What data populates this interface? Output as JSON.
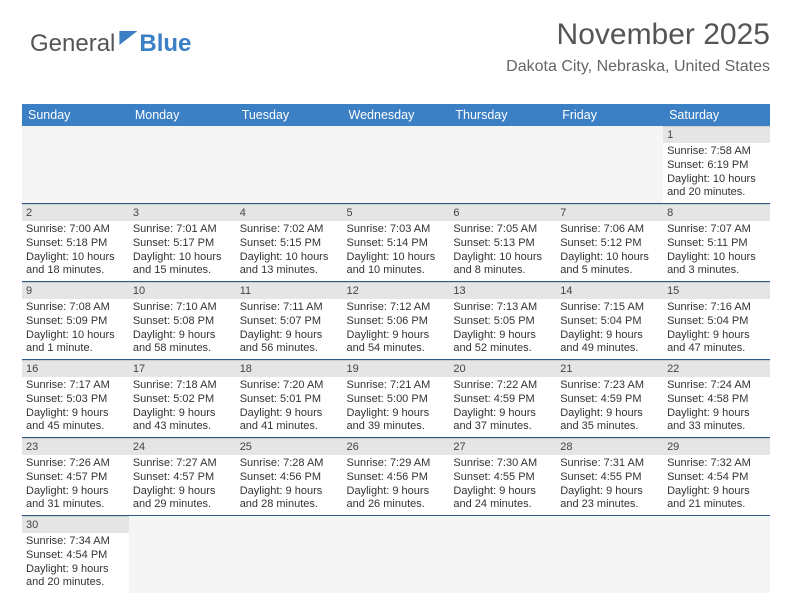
{
  "logo": {
    "part1": "General",
    "part2": "Blue"
  },
  "title": "November 2025",
  "location": "Dakota City, Nebraska, United States",
  "colors": {
    "header_bg": "#3b7fc4",
    "header_text": "#ffffff",
    "daynum_bg": "#e5e5e5",
    "border": "#2d5b8c",
    "text": "#333333"
  },
  "weekdays": [
    "Sunday",
    "Monday",
    "Tuesday",
    "Wednesday",
    "Thursday",
    "Friday",
    "Saturday"
  ],
  "weeks": [
    [
      null,
      null,
      null,
      null,
      null,
      null,
      {
        "n": "1",
        "sunrise": "Sunrise: 7:58 AM",
        "sunset": "Sunset: 6:19 PM",
        "daylight": "Daylight: 10 hours and 20 minutes."
      }
    ],
    [
      {
        "n": "2",
        "sunrise": "Sunrise: 7:00 AM",
        "sunset": "Sunset: 5:18 PM",
        "daylight": "Daylight: 10 hours and 18 minutes."
      },
      {
        "n": "3",
        "sunrise": "Sunrise: 7:01 AM",
        "sunset": "Sunset: 5:17 PM",
        "daylight": "Daylight: 10 hours and 15 minutes."
      },
      {
        "n": "4",
        "sunrise": "Sunrise: 7:02 AM",
        "sunset": "Sunset: 5:15 PM",
        "daylight": "Daylight: 10 hours and 13 minutes."
      },
      {
        "n": "5",
        "sunrise": "Sunrise: 7:03 AM",
        "sunset": "Sunset: 5:14 PM",
        "daylight": "Daylight: 10 hours and 10 minutes."
      },
      {
        "n": "6",
        "sunrise": "Sunrise: 7:05 AM",
        "sunset": "Sunset: 5:13 PM",
        "daylight": "Daylight: 10 hours and 8 minutes."
      },
      {
        "n": "7",
        "sunrise": "Sunrise: 7:06 AM",
        "sunset": "Sunset: 5:12 PM",
        "daylight": "Daylight: 10 hours and 5 minutes."
      },
      {
        "n": "8",
        "sunrise": "Sunrise: 7:07 AM",
        "sunset": "Sunset: 5:11 PM",
        "daylight": "Daylight: 10 hours and 3 minutes."
      }
    ],
    [
      {
        "n": "9",
        "sunrise": "Sunrise: 7:08 AM",
        "sunset": "Sunset: 5:09 PM",
        "daylight": "Daylight: 10 hours and 1 minute."
      },
      {
        "n": "10",
        "sunrise": "Sunrise: 7:10 AM",
        "sunset": "Sunset: 5:08 PM",
        "daylight": "Daylight: 9 hours and 58 minutes."
      },
      {
        "n": "11",
        "sunrise": "Sunrise: 7:11 AM",
        "sunset": "Sunset: 5:07 PM",
        "daylight": "Daylight: 9 hours and 56 minutes."
      },
      {
        "n": "12",
        "sunrise": "Sunrise: 7:12 AM",
        "sunset": "Sunset: 5:06 PM",
        "daylight": "Daylight: 9 hours and 54 minutes."
      },
      {
        "n": "13",
        "sunrise": "Sunrise: 7:13 AM",
        "sunset": "Sunset: 5:05 PM",
        "daylight": "Daylight: 9 hours and 52 minutes."
      },
      {
        "n": "14",
        "sunrise": "Sunrise: 7:15 AM",
        "sunset": "Sunset: 5:04 PM",
        "daylight": "Daylight: 9 hours and 49 minutes."
      },
      {
        "n": "15",
        "sunrise": "Sunrise: 7:16 AM",
        "sunset": "Sunset: 5:04 PM",
        "daylight": "Daylight: 9 hours and 47 minutes."
      }
    ],
    [
      {
        "n": "16",
        "sunrise": "Sunrise: 7:17 AM",
        "sunset": "Sunset: 5:03 PM",
        "daylight": "Daylight: 9 hours and 45 minutes."
      },
      {
        "n": "17",
        "sunrise": "Sunrise: 7:18 AM",
        "sunset": "Sunset: 5:02 PM",
        "daylight": "Daylight: 9 hours and 43 minutes."
      },
      {
        "n": "18",
        "sunrise": "Sunrise: 7:20 AM",
        "sunset": "Sunset: 5:01 PM",
        "daylight": "Daylight: 9 hours and 41 minutes."
      },
      {
        "n": "19",
        "sunrise": "Sunrise: 7:21 AM",
        "sunset": "Sunset: 5:00 PM",
        "daylight": "Daylight: 9 hours and 39 minutes."
      },
      {
        "n": "20",
        "sunrise": "Sunrise: 7:22 AM",
        "sunset": "Sunset: 4:59 PM",
        "daylight": "Daylight: 9 hours and 37 minutes."
      },
      {
        "n": "21",
        "sunrise": "Sunrise: 7:23 AM",
        "sunset": "Sunset: 4:59 PM",
        "daylight": "Daylight: 9 hours and 35 minutes."
      },
      {
        "n": "22",
        "sunrise": "Sunrise: 7:24 AM",
        "sunset": "Sunset: 4:58 PM",
        "daylight": "Daylight: 9 hours and 33 minutes."
      }
    ],
    [
      {
        "n": "23",
        "sunrise": "Sunrise: 7:26 AM",
        "sunset": "Sunset: 4:57 PM",
        "daylight": "Daylight: 9 hours and 31 minutes."
      },
      {
        "n": "24",
        "sunrise": "Sunrise: 7:27 AM",
        "sunset": "Sunset: 4:57 PM",
        "daylight": "Daylight: 9 hours and 29 minutes."
      },
      {
        "n": "25",
        "sunrise": "Sunrise: 7:28 AM",
        "sunset": "Sunset: 4:56 PM",
        "daylight": "Daylight: 9 hours and 28 minutes."
      },
      {
        "n": "26",
        "sunrise": "Sunrise: 7:29 AM",
        "sunset": "Sunset: 4:56 PM",
        "daylight": "Daylight: 9 hours and 26 minutes."
      },
      {
        "n": "27",
        "sunrise": "Sunrise: 7:30 AM",
        "sunset": "Sunset: 4:55 PM",
        "daylight": "Daylight: 9 hours and 24 minutes."
      },
      {
        "n": "28",
        "sunrise": "Sunrise: 7:31 AM",
        "sunset": "Sunset: 4:55 PM",
        "daylight": "Daylight: 9 hours and 23 minutes."
      },
      {
        "n": "29",
        "sunrise": "Sunrise: 7:32 AM",
        "sunset": "Sunset: 4:54 PM",
        "daylight": "Daylight: 9 hours and 21 minutes."
      }
    ],
    [
      {
        "n": "30",
        "sunrise": "Sunrise: 7:34 AM",
        "sunset": "Sunset: 4:54 PM",
        "daylight": "Daylight: 9 hours and 20 minutes."
      },
      null,
      null,
      null,
      null,
      null,
      null
    ]
  ]
}
